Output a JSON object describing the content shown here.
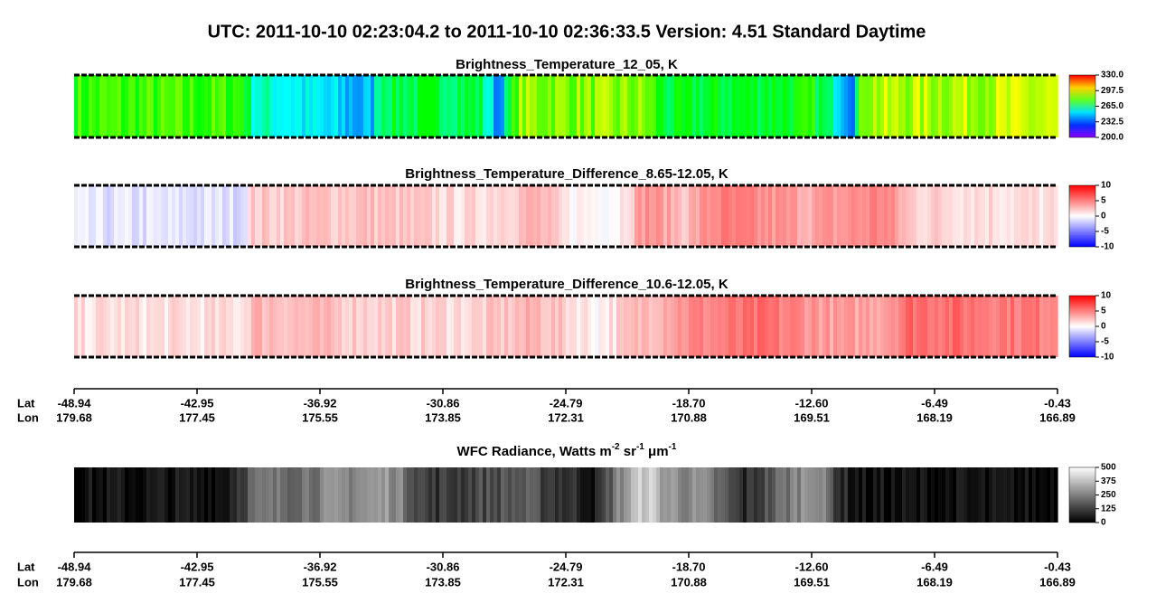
{
  "title": "UTC:  2011-10-10   02:23:04.2  to  2011-10-10   02:36:33.5    Version: 4.51  Standard Daytime",
  "panels": [
    {
      "title": "Brightness_Temperature_12_05, K",
      "colorbar": [
        "330.0",
        "297.5",
        "265.0",
        "232.5",
        "200.0"
      ]
    },
    {
      "title": "Brightness_Temperature_Difference_8.65-12.05, K",
      "colorbar": [
        "10",
        "5",
        "0",
        "-5",
        "-10"
      ]
    },
    {
      "title": "Brightness_Temperature_Difference_10.6-12.05, K",
      "colorbar": [
        "10",
        "5",
        "0",
        "-5",
        "-10"
      ]
    },
    {
      "title_parts": [
        "WFC Radiance, Watts m",
        "-2",
        " sr",
        "-1",
        " μm",
        "-1"
      ],
      "colorbar": [
        "500",
        "375",
        "250",
        "125",
        "0"
      ]
    }
  ],
  "axes": [
    {
      "lat_label": "Lat",
      "lon_label": "Lon",
      "lat": [
        "-48.94",
        "-42.95",
        "-36.92",
        "-30.86",
        "-24.79",
        "-18.70",
        "-12.60",
        "-6.49",
        "-0.43"
      ],
      "lon": [
        "179.68",
        "177.45",
        "175.55",
        "173.85",
        "172.31",
        "170.88",
        "169.51",
        "168.19",
        "166.89"
      ]
    },
    {
      "lat_label": "Lat",
      "lon_label": "Lon",
      "lat": [
        "-48.94",
        "-42.95",
        "-36.92",
        "-30.86",
        "-24.79",
        "-18.70",
        "-12.60",
        "-6.49",
        "-0.43"
      ],
      "lon": [
        "179.68",
        "177.45",
        "175.55",
        "173.85",
        "172.31",
        "170.88",
        "169.51",
        "168.19",
        "166.89"
      ]
    }
  ]
}
